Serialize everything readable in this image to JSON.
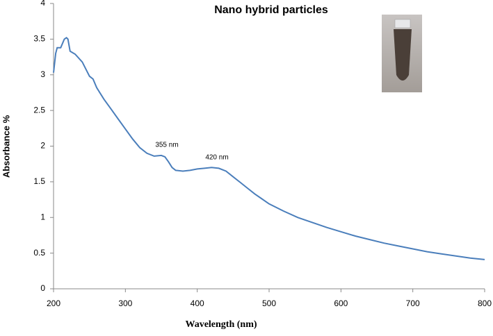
{
  "chart_data": {
    "type": "line",
    "title": "Nano hybrid particles",
    "x_label": "Wavelength (nm)",
    "y_label": "Absorbance %",
    "annotations": [
      "355 nm",
      "420 nm"
    ],
    "x": [
      200,
      203,
      205,
      210,
      215,
      218,
      220,
      223,
      230,
      240,
      250,
      255,
      260,
      270,
      280,
      290,
      300,
      310,
      320,
      330,
      340,
      350,
      355,
      360,
      365,
      370,
      380,
      390,
      400,
      410,
      420,
      430,
      440,
      450,
      460,
      470,
      480,
      490,
      500,
      520,
      540,
      560,
      580,
      600,
      620,
      640,
      660,
      680,
      700,
      720,
      740,
      760,
      780,
      800
    ],
    "series": [
      {
        "name": "Absorbance",
        "color": "#4a7ebb",
        "values": [
          3.03,
          3.3,
          3.38,
          3.38,
          3.5,
          3.52,
          3.5,
          3.33,
          3.29,
          3.18,
          2.98,
          2.94,
          2.82,
          2.66,
          2.52,
          2.38,
          2.24,
          2.1,
          1.98,
          1.9,
          1.86,
          1.87,
          1.85,
          1.78,
          1.7,
          1.66,
          1.65,
          1.66,
          1.68,
          1.69,
          1.7,
          1.69,
          1.65,
          1.57,
          1.49,
          1.41,
          1.33,
          1.26,
          1.19,
          1.09,
          1.0,
          0.93,
          0.86,
          0.8,
          0.74,
          0.69,
          0.64,
          0.6,
          0.56,
          0.52,
          0.49,
          0.46,
          0.43,
          0.41
        ]
      }
    ],
    "xlim": [
      200,
      800
    ],
    "xticks": [
      200,
      300,
      400,
      500,
      600,
      700,
      800
    ],
    "ylim": [
      0,
      4
    ],
    "yticks": [
      0,
      0.5,
      1,
      1.5,
      2,
      2.5,
      3,
      3.5,
      4
    ],
    "grid": false
  }
}
